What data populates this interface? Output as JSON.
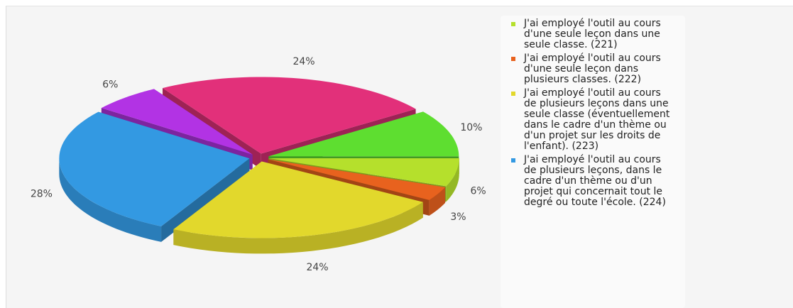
{
  "chart_data": {
    "type": "pie",
    "categories": [
      "J'ai employé l'outil au cours d'une seule leçon dans une seule classe. (221)",
      "J'ai employé l'outil au cours d'une seule leçon dans plusieurs classes. (222)",
      "J'ai employé l'outil au cours de plusieurs leçons dans une seule classe (éventuellement dans le cadre d'un thème ou d'un projet sur les droits de l'enfant). (223)",
      "J'ai employé l'outil au cours de plusieurs leçons, dans le cadre d'un thème ou d'un projet qui concernait tout le degré ou toute l'école. (224)",
      null,
      null,
      null
    ],
    "values": [
      6,
      3,
      24,
      28,
      6,
      24,
      10
    ],
    "value_labels": [
      "6%",
      "3%",
      "24%",
      "28%",
      "6%",
      "24%",
      "10%"
    ],
    "colors": [
      "#b5e02c",
      "#e8621e",
      "#e2d82c",
      "#3399e2",
      "#b233e4",
      "#e2307a",
      "#5ede30"
    ],
    "legend": "right"
  }
}
